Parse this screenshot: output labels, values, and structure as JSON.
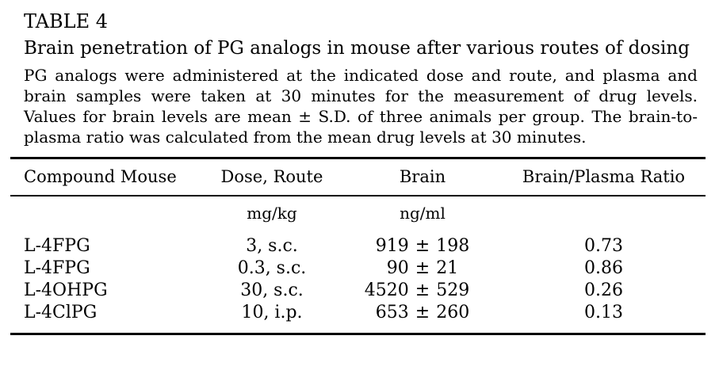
{
  "page": {
    "label": "TABLE 4",
    "title": "Brain penetration of PG analogs in mouse after various routes of dosing",
    "caption": "PG analogs were administered at the indicated dose and route, and plasma and brain samples were taken at 30 minutes for the measurement of drug levels. Values for brain levels are mean ± S.D. of three animals per group. The brain-to-plasma ratio was calculated from the mean drug levels at 30 minutes."
  },
  "colors": {
    "text": "#000000",
    "background": "#ffffff",
    "rule": "#000000"
  },
  "chart_data": {
    "type": "table",
    "title": "Brain penetration of PG analogs in mouse after various routes of dosing",
    "columns": [
      "Compound Mouse",
      "Dose, Route",
      "Brain",
      "Brain/Plasma Ratio"
    ],
    "units": {
      "dose": "mg/kg",
      "brain": "ng/ml"
    },
    "plus_minus": "±",
    "rows": [
      {
        "compound": "L-4FPG",
        "dose_route": "3, s.c.",
        "brain_mean": "919",
        "brain_sd": "198",
        "ratio": "0.73"
      },
      {
        "compound": "L-4FPG",
        "dose_route": "0.3, s.c.",
        "brain_mean": "90",
        "brain_sd": "21",
        "ratio": "0.86"
      },
      {
        "compound": "L-4OHPG",
        "dose_route": "30, s.c.",
        "brain_mean": "4520",
        "brain_sd": "529",
        "ratio": "0.26"
      },
      {
        "compound": "L-4ClPG",
        "dose_route": "10, i.p.",
        "brain_mean": "653",
        "brain_sd": "260",
        "ratio": "0.13"
      }
    ]
  }
}
